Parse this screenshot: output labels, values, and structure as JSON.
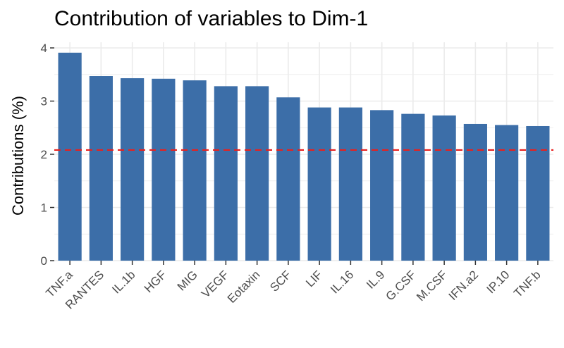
{
  "chart_data": {
    "type": "bar",
    "title": "Contribution of variables to Dim-1",
    "xlabel": "",
    "ylabel": "Contributions (%)",
    "categories": [
      "TNF.a",
      "RANTES",
      "IL.1b",
      "HGF",
      "MIG",
      "VEGF",
      "Eotaxin",
      "SCF",
      "LIF",
      "IL.16",
      "IL.9",
      "G.CSF",
      "M.CSF",
      "IFN.a2",
      "IP.10",
      "TNF.b"
    ],
    "values": [
      3.91,
      3.47,
      3.43,
      3.42,
      3.39,
      3.28,
      3.28,
      3.07,
      2.88,
      2.88,
      2.83,
      2.76,
      2.73,
      2.57,
      2.55,
      2.53
    ],
    "yticks": [
      0,
      1,
      2,
      3,
      4
    ],
    "ylim": [
      0,
      4.1
    ],
    "reference_line": 2.08,
    "grid": true,
    "colors": {
      "bar": "#3C6EA8",
      "reference_line": "#E8201E",
      "grid": "#EBEBEB"
    }
  }
}
